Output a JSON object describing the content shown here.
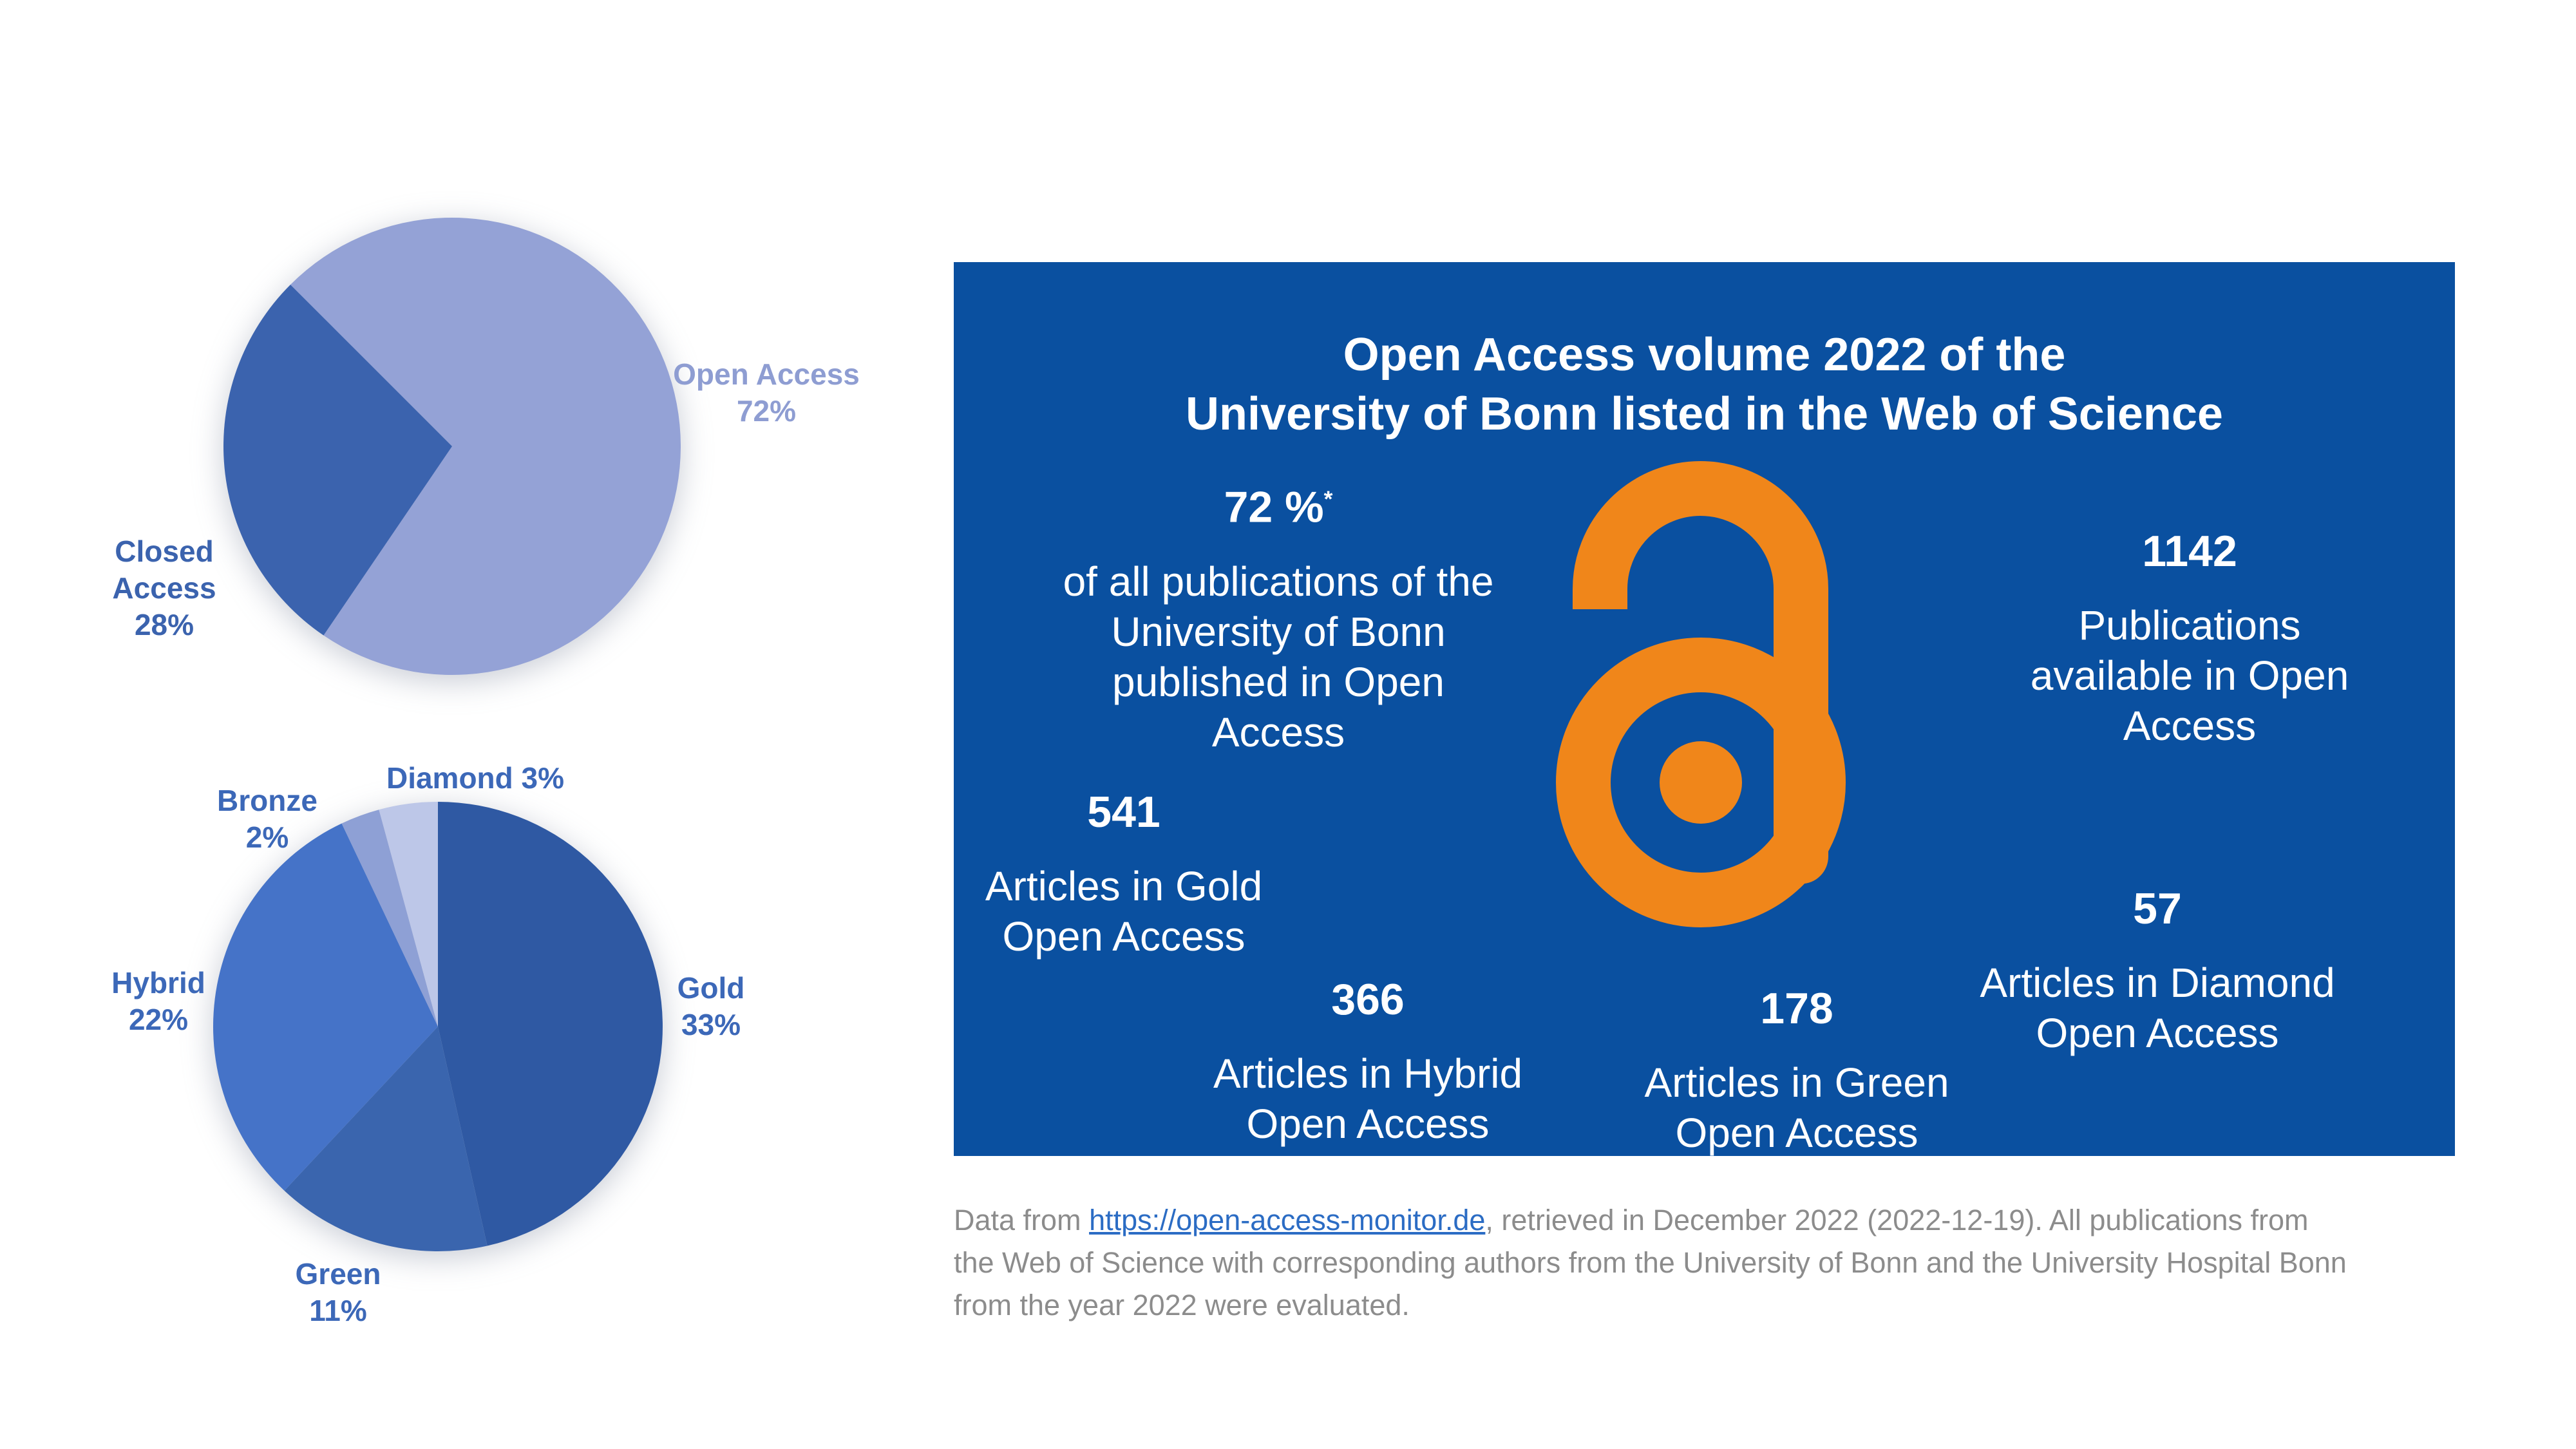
{
  "colors": {
    "page_bg": "#FFFFFF",
    "box_blue": "#0A50A0",
    "logo_orange": "#F0861A",
    "text_white": "#FFFFFF",
    "footnote_gray": "#8C8C8C",
    "link_blue": "#2B6CC4",
    "pie1_open": "#94A2D6",
    "pie1_closed": "#3B63AE",
    "pie1_open_label": "#8E9DD2",
    "pie2_label": "#3C68B8",
    "pie2_gold": "#2F59A3",
    "pie2_green": "#3A65AE",
    "pie2_hybrid": "#4573C8",
    "pie2_bronze": "#8EA0D5",
    "pie2_diamond": "#BDC7E8"
  },
  "chart_data": [
    {
      "type": "pie",
      "name": "open-vs-closed-access-share",
      "title": "",
      "labels": [
        "Open Access",
        "Closed Access"
      ],
      "values": [
        72,
        28
      ],
      "unit": "%",
      "colors": [
        "#94A2D6",
        "#3B63AE"
      ],
      "start_angle_deg": 315,
      "direction": "clockwise",
      "legend": "none",
      "data_labels": [
        {
          "text": "Open Access\n72%"
        },
        {
          "text": "Closed\nAccess\n28%"
        }
      ]
    },
    {
      "type": "pie",
      "name": "open-access-types-share",
      "title": "",
      "labels": [
        "Gold",
        "Green",
        "Hybrid",
        "Bronze",
        "Diamond"
      ],
      "values": [
        33,
        11,
        22,
        2,
        3
      ],
      "unit": "% of all publications (pie normalized to the 71% open-access subtotal)",
      "colors": [
        "#2F59A3",
        "#3A65AE",
        "#4573C8",
        "#8EA0D5",
        "#BDC7E8"
      ],
      "start_angle_deg": 0,
      "direction": "clockwise",
      "legend": "none",
      "data_labels": [
        {
          "text": "Gold\n33%"
        },
        {
          "text": "Green\n11%"
        },
        {
          "text": "Hybrid\n22%"
        },
        {
          "text": "Bronze\n2%"
        },
        {
          "text": "Diamond 3%"
        }
      ]
    }
  ],
  "infobox": {
    "title": "Open Access volume 2022 of the\nUniversity of Bonn listed in the Web of Science",
    "stats": [
      {
        "id": "pct",
        "number": "72 %",
        "sup": "*",
        "lines": "of all publications of the\nUniversity of Bonn\npublished in Open\nAccess"
      },
      {
        "id": "gold",
        "number": "541",
        "lines": "Articles in Gold\nOpen Access"
      },
      {
        "id": "hybrid",
        "number": "366",
        "lines": "Articles in Hybrid\nOpen Access"
      },
      {
        "id": "green",
        "number": "178",
        "lines": "Articles in Green\nOpen Access"
      },
      {
        "id": "total",
        "number": "1142",
        "lines": "Publications\navailable in Open\nAccess"
      },
      {
        "id": "diamond",
        "number": "57",
        "lines": "Articles in Diamond\nOpen Access"
      }
    ],
    "logo": "open-access-padlock"
  },
  "footnote": {
    "prefix": "Data from ",
    "link": "https://open-access-monitor.de",
    "line1_rest": ", retrieved in December 2022 (2022-12-19). All publications from",
    "line2": "the Web of Science with corresponding authors from the University of Bonn and the University Hospital Bonn",
    "line3": "from the year 2022 were evaluated."
  }
}
